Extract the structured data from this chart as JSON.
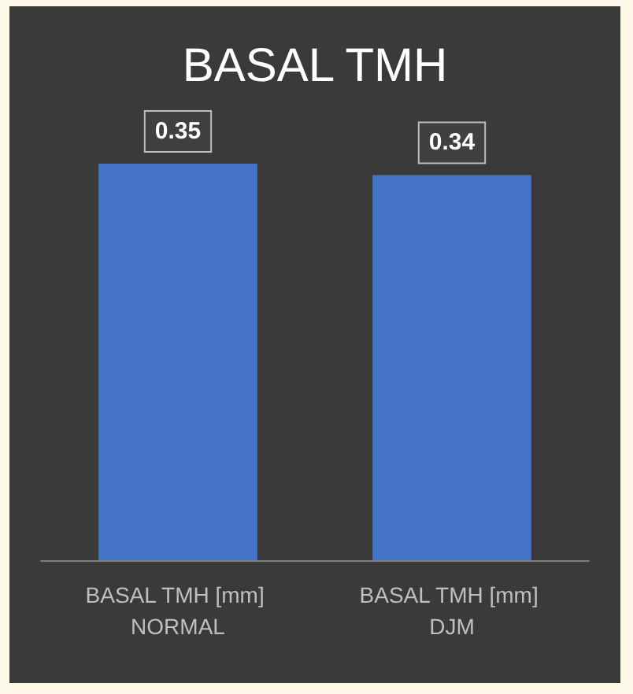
{
  "chart_data": {
    "type": "bar",
    "title": "BASAL TMH",
    "categories": [
      "BASAL TMH [mm] NORMAL",
      "BASAL TMH [mm] DJM"
    ],
    "values": [
      0.35,
      0.34
    ],
    "color": "#4472c4",
    "data_labels": true
  }
}
